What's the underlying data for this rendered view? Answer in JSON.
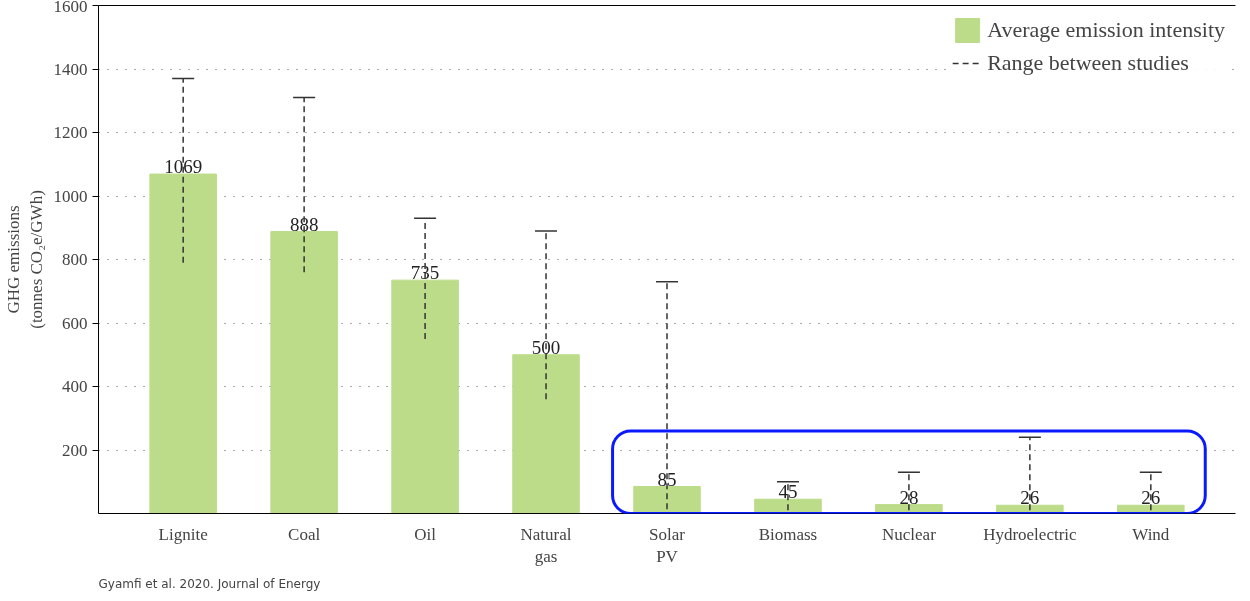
{
  "chart_data": {
    "type": "bar",
    "ylabel": "GHG emissions\n(tonnes CO₂e/GWh)",
    "categories": [
      "Lignite",
      "Coal",
      "Oil",
      "Natural gas",
      "Solar PV",
      "Biomass",
      "Nuclear",
      "Hydroelectric",
      "Wind"
    ],
    "series": [
      {
        "name": "Average emission intensity",
        "color": "#bcdc8a",
        "values": [
          1069,
          888,
          735,
          500,
          85,
          45,
          28,
          26,
          26
        ],
        "errors": [
          [
            790,
            1370
          ],
          [
            760,
            1310
          ],
          [
            550,
            930
          ],
          [
            360,
            890
          ],
          [
            13,
            730
          ],
          [
            10,
            100
          ],
          [
            10,
            130
          ],
          [
            10,
            240
          ],
          [
            10,
            130
          ]
        ]
      }
    ],
    "ylim": [
      0,
      1600
    ],
    "yticks": [
      200,
      400,
      600,
      800,
      1000,
      1200,
      1400,
      1600
    ],
    "grid": "y",
    "legend": "top right",
    "data_labels": true,
    "annotations": [
      "Range between studies",
      "Gyamfi et al. 2020. Journal of Energy"
    ]
  }
}
